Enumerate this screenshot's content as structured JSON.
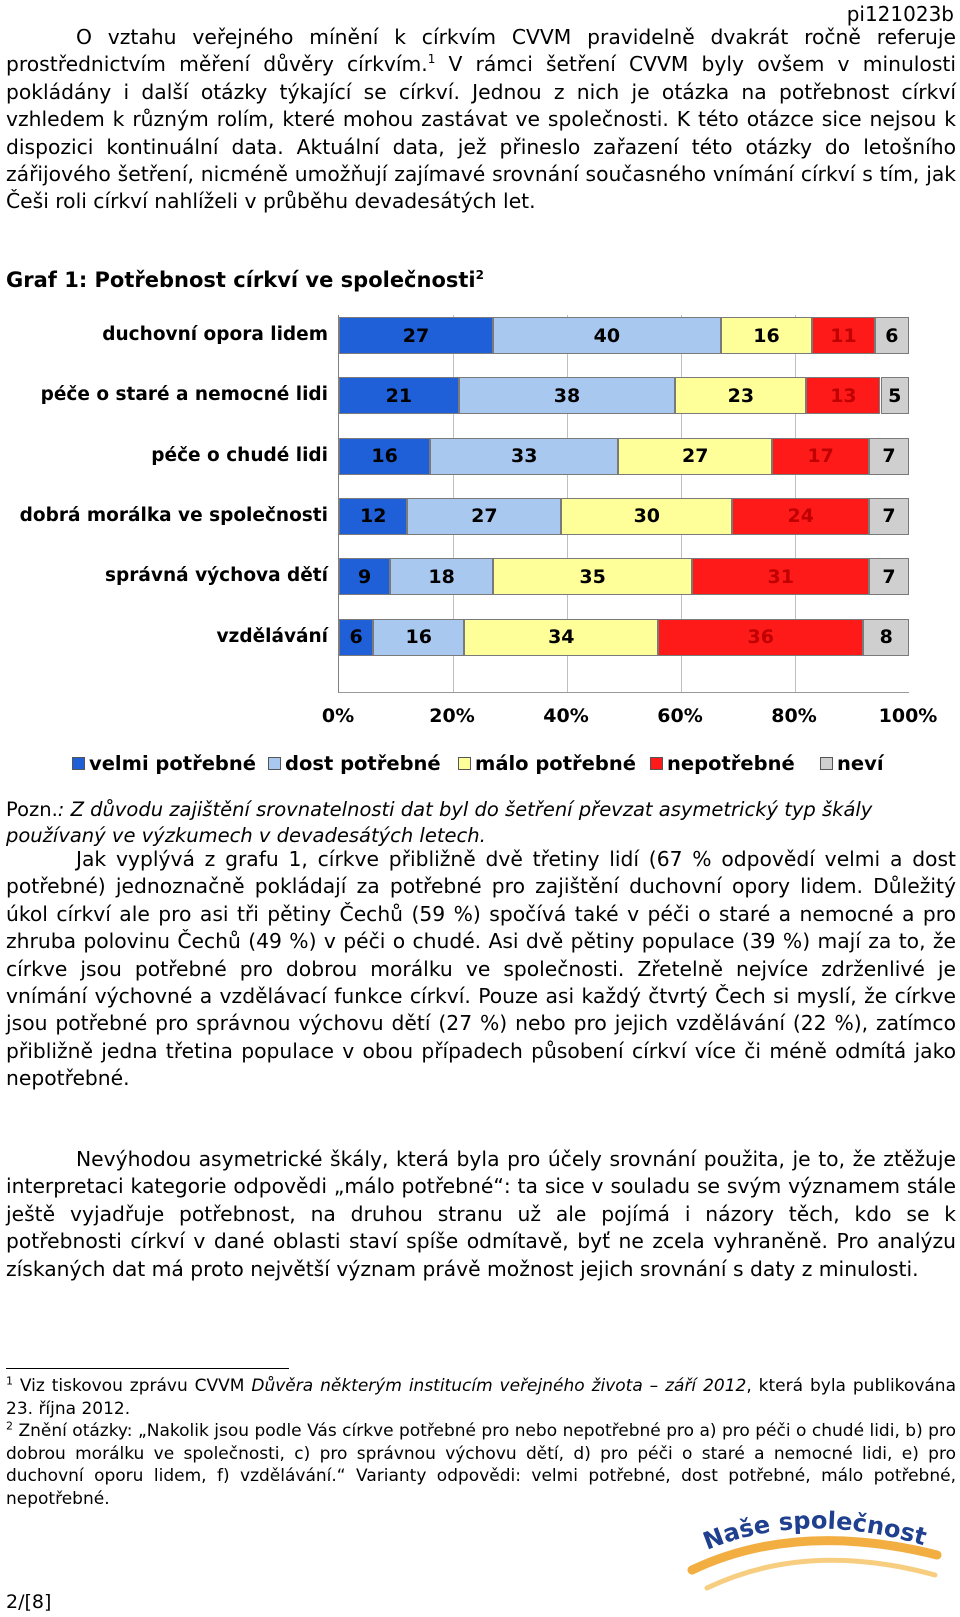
{
  "doc_id": "pi121023b",
  "para1": "O vztahu veřejného mínění k církvím CVVM pravidelně dvakrát ročně referuje prostřednictvím měření důvěry církvím.",
  "para1_fnref": "1",
  "para1b": " V rámci šetření CVVM byly ovšem v minulosti pokládány i další otázky týkající se církví. Jednou z nich je otázka na potřebnost církví vzhledem k různým rolím, které mohou zastávat ve společnosti. K této otázce sice nejsou k dispozici kontinuální data. Aktuální data, jež přineslo zařazení této otázky do letošního zářijového šetření, nicméně umožňují zajímavé srovnání současného vnímání církví s tím, jak Češi roli církví nahlíželi v průběhu devadesátých let.",
  "chart_title": "Graf 1: Potřebnost církví ve společnosti",
  "chart_title_fnref": "2",
  "chart_data": {
    "type": "bar",
    "orientation": "horizontal",
    "stacked": true,
    "normalized_percent": true,
    "categories": [
      "duchovní opora lidem",
      "péče o staré a nemocné lidi",
      "péče o chudé lidi",
      "dobrá morálka ve společnosti",
      "správná výchova dětí",
      "vzdělávání"
    ],
    "series": [
      {
        "name": "velmi potřebné",
        "color": "#1f5fd8",
        "values": [
          27,
          21,
          16,
          12,
          9,
          6
        ]
      },
      {
        "name": "dost potřebné",
        "color": "#a9c8f0",
        "values": [
          40,
          38,
          33,
          27,
          18,
          16
        ]
      },
      {
        "name": "málo potřebné",
        "color": "#ffff99",
        "values": [
          16,
          23,
          27,
          30,
          35,
          34
        ]
      },
      {
        "name": "nepotřebné",
        "color": "#ff1a1a",
        "values": [
          11,
          13,
          17,
          24,
          31,
          36
        ]
      },
      {
        "name": "neví",
        "color": "#cfcfcf",
        "values": [
          6,
          5,
          7,
          7,
          7,
          8
        ]
      }
    ],
    "label_colors": [
      "#000000",
      "#000000",
      "#000000",
      "#c00000",
      "#000000"
    ],
    "xlim": [
      0,
      100
    ],
    "xticks": [
      "0%",
      "20%",
      "40%",
      "60%",
      "80%",
      "100%"
    ],
    "legend_position": "bottom",
    "grid": "vertical"
  },
  "note_label": "Pozn.",
  "note_text": ": Z důvodu zajištění srovnatelnosti dat byl do šetření převzat asymetrický typ škály používaný ve výzkumech v devadesátých letech.",
  "para2": "Jak vyplývá z grafu 1, církve přibližně dvě třetiny lidí (67 % odpovědí velmi a dost potřebné) jednoznačně pokládají za potřebné pro zajištění duchovní opory lidem. Důležitý úkol církví ale pro asi tři pětiny Čechů (59 %) spočívá také v péči o staré a nemocné a pro zhruba polovinu Čechů (49 %) v péči o chudé. Asi dvě pětiny populace (39 %) mají za to, že církve jsou potřebné pro dobrou morálku ve společnosti. Zřetelně nejvíce zdrženlivé je vnímání výchovné a vzdělávací funkce církví. Pouze asi každý čtvrtý Čech si myslí, že církve jsou potřebné pro správnou výchovu dětí (27 %) nebo pro jejich vzdělávání (22 %), zatímco přibližně jedna třetina populace v obou případech působení církví více či méně odmítá jako nepotřebné.",
  "para3": "Nevýhodou asymetrické škály, která byla pro účely srovnání použita, je to, že ztěžuje interpretaci kategorie odpovědi „málo potřebné“: ta sice v souladu se svým významem stále ještě vyjadřuje potřebnost, na druhou stranu už ale pojímá i názory těch, kdo se k potřebnosti církví v dané oblasti staví spíše odmítavě, byť ne zcela vyhraněně. Pro analýzu získaných dat má proto největší význam právě možnost jejich srovnání s daty z minulosti.",
  "footnote1_num": "1",
  "footnote1_pre": " Viz tiskovou zprávu CVVM ",
  "footnote1_title": "Důvěra některým institucím veřejného života – září 2012",
  "footnote1_post": ", která byla publikována 23. října 2012.",
  "footnote2_num": "2",
  "footnote2_text": " Znění otázky: „Nakolik jsou podle Vás církve potřebné pro nebo nepotřebné pro a) pro péči o chudé lidi, b) pro dobrou morálku ve společnosti, c) pro správnou výchovu dětí, d) pro péči o staré a nemocné lidi, e) pro duchovní oporu lidem, f) vzdělávání.“ Varianty odpovědi: velmi potřebné, dost potřebné, málo potřebné, nepotřebné.",
  "logo_text": "Naše společnost",
  "page_number": "2/[8]"
}
